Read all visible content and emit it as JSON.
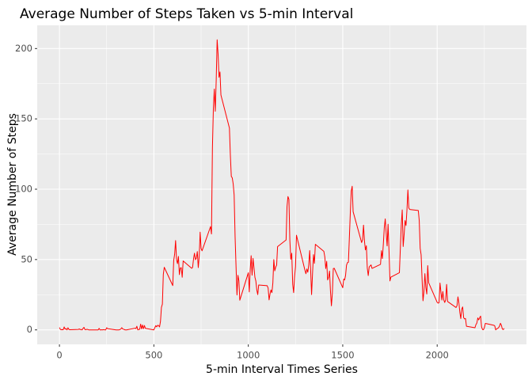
{
  "chart_data": {
    "type": "line",
    "title": "Average Number of Steps Taken vs 5-min Interval",
    "xlabel": "5-min Interval Times Series",
    "ylabel": "Average Number of Steps",
    "x": [
      0,
      5,
      10,
      15,
      20,
      25,
      30,
      35,
      40,
      45,
      50,
      55,
      100,
      105,
      110,
      115,
      120,
      125,
      130,
      135,
      140,
      145,
      150,
      155,
      200,
      205,
      210,
      215,
      220,
      225,
      230,
      235,
      240,
      245,
      250,
      255,
      300,
      305,
      310,
      315,
      320,
      325,
      330,
      335,
      340,
      345,
      350,
      355,
      400,
      405,
      410,
      415,
      420,
      425,
      430,
      435,
      440,
      445,
      450,
      455,
      500,
      505,
      510,
      515,
      520,
      525,
      530,
      535,
      540,
      545,
      550,
      555,
      600,
      605,
      610,
      615,
      620,
      625,
      630,
      635,
      640,
      645,
      650,
      655,
      700,
      705,
      710,
      715,
      720,
      725,
      730,
      735,
      740,
      745,
      750,
      755,
      800,
      805,
      810,
      815,
      820,
      825,
      830,
      835,
      840,
      845,
      850,
      855,
      900,
      905,
      910,
      915,
      920,
      925,
      930,
      935,
      940,
      945,
      950,
      955,
      1000,
      1005,
      1010,
      1015,
      1020,
      1025,
      1030,
      1035,
      1040,
      1045,
      1050,
      1055,
      1100,
      1105,
      1110,
      1115,
      1120,
      1125,
      1130,
      1135,
      1140,
      1145,
      1150,
      1155,
      1200,
      1205,
      1210,
      1215,
      1220,
      1225,
      1230,
      1235,
      1240,
      1245,
      1250,
      1255,
      1300,
      1305,
      1310,
      1315,
      1320,
      1325,
      1330,
      1335,
      1340,
      1345,
      1350,
      1355,
      1400,
      1405,
      1410,
      1415,
      1420,
      1425,
      1430,
      1435,
      1440,
      1445,
      1450,
      1455,
      1500,
      1505,
      1510,
      1515,
      1520,
      1525,
      1530,
      1535,
      1540,
      1545,
      1550,
      1555,
      1600,
      1605,
      1610,
      1615,
      1620,
      1625,
      1630,
      1635,
      1640,
      1645,
      1650,
      1655,
      1700,
      1705,
      1710,
      1715,
      1720,
      1725,
      1730,
      1735,
      1740,
      1745,
      1750,
      1755,
      1800,
      1805,
      1810,
      1815,
      1820,
      1825,
      1830,
      1835,
      1840,
      1845,
      1850,
      1855,
      1900,
      1905,
      1910,
      1915,
      1920,
      1925,
      1930,
      1935,
      1940,
      1945,
      1950,
      1955,
      2000,
      2005,
      2010,
      2015,
      2020,
      2025,
      2030,
      2035,
      2040,
      2045,
      2050,
      2055,
      2100,
      2105,
      2110,
      2115,
      2120,
      2125,
      2130,
      2135,
      2140,
      2145,
      2150,
      2155,
      2200,
      2205,
      2210,
      2215,
      2220,
      2225,
      2230,
      2235,
      2240,
      2245,
      2250,
      2255,
      2300,
      2305,
      2310,
      2315,
      2320,
      2325,
      2330,
      2335,
      2340,
      2345,
      2350,
      2355
    ],
    "values": [
      1.7,
      0.3,
      0.1,
      0.2,
      0.1,
      2.1,
      0.5,
      0.9,
      0,
      1.5,
      0.3,
      0.1,
      0.3,
      0.7,
      0.2,
      0.3,
      0,
      1.1,
      1.8,
      0.2,
      0.2,
      0.4,
      0.3,
      0,
      0,
      0,
      1.1,
      0,
      0,
      0.1,
      0,
      0.2,
      0,
      0,
      1.5,
      0.9,
      0,
      0,
      0,
      0,
      0.2,
      0.6,
      1.6,
      0.6,
      0.5,
      0.1,
      0,
      0,
      1.2,
      0.9,
      2.6,
      0,
      0.3,
      0.4,
      4.1,
      0.7,
      3.5,
      0.8,
      3.1,
      1.1,
      0,
      1.6,
      3,
      2.2,
      3.3,
      3,
      2.1,
      6.1,
      16,
      18.3,
      39.5,
      44.5,
      31.5,
      49.3,
      53.8,
      63.5,
      50,
      47.1,
      52.2,
      39.3,
      44,
      44.2,
      37.4,
      49,
      43.8,
      44.4,
      50.5,
      54.5,
      49.9,
      51,
      55.7,
      44.3,
      52.3,
      69.5,
      57.8,
      56.2,
      73.4,
      68.2,
      129.4,
      157.5,
      171.2,
      155.4,
      177.3,
      206.2,
      195.9,
      179.6,
      183.4,
      167,
      143.5,
      124,
      109.1,
      108.1,
      103.7,
      95.9,
      66.2,
      45.2,
      24.8,
      38.8,
      35,
      21.1,
      40.6,
      27,
      42.4,
      52.7,
      38.9,
      50.8,
      44.3,
      37.4,
      34.7,
      28.3,
      25.1,
      31.9,
      31.4,
      29.7,
      21.3,
      25.5,
      28.4,
      26.5,
      33.4,
      50,
      42,
      44.6,
      46,
      59.2,
      63.9,
      87.7,
      94.8,
      92.8,
      63.4,
      50.2,
      54.5,
      32.4,
      26.5,
      37.7,
      45.1,
      67.3,
      42.3,
      39.9,
      43.3,
      41,
      46.2,
      56.4,
      42.8,
      25.1,
      40,
      53.5,
      47.3,
      60.8,
      55.8,
      52,
      43.6,
      48.7,
      35.5,
      37.5,
      41.8,
      27.5,
      17.1,
      26.1,
      43.6,
      43.8,
      30,
      36.1,
      35.5,
      38.8,
      46,
      47.8,
      48.1,
      65.3,
      82.9,
      98.7,
      102.1,
      84,
      62.1,
      64.1,
      74.5,
      63.2,
      56.9,
      59.8,
      43.9,
      38.6,
      44.7,
      45.5,
      46.2,
      43.7,
      46.6,
      56.3,
      50.7,
      61.2,
      72.7,
      78.9,
      68.9,
      59.7,
      75.1,
      56.5,
      34.8,
      37.5,
      40.7,
      58,
      74.7,
      85.3,
      59.3,
      67.8,
      77.7,
      74.2,
      85.3,
      99.5,
      86.6,
      85.6,
      84.9,
      77.8,
      58,
      53.4,
      36.3,
      20.7,
      27.4,
      40,
      30.2,
      25.5,
      45.7,
      33.5,
      19.6,
      19,
      19.3,
      33.3,
      26.8,
      21.2,
      27.3,
      21.3,
      19.5,
      21.3,
      32.3,
      20.2,
      15.9,
      17.2,
      23.5,
      19.2,
      12.5,
      8,
      14.7,
      16.3,
      8.7,
      7.8,
      8.1,
      2.6,
      1.5,
      3.7,
      4.8,
      8.5,
      7.1,
      8.7,
      9.8,
      2.2,
      0.3,
      0.1,
      1.6,
      4.6,
      3.3,
      2.8,
      0,
      0.8,
      1,
      1.6,
      2.6,
      4.7,
      3.3,
      0.6,
      0.2,
      1.1
    ],
    "color": "#ff0000",
    "xlim": [
      -117.75,
      2472.75
    ],
    "xticks": [
      0,
      500,
      1000,
      1500,
      2000
    ],
    "xminorticks": [
      250,
      750,
      1250,
      1750,
      2250
    ],
    "ylim": [
      -10.3,
      216.5
    ],
    "yticks": [
      0,
      50,
      100,
      150,
      200
    ],
    "yminorticks": [
      25,
      75,
      125,
      175
    ],
    "grid": true
  }
}
